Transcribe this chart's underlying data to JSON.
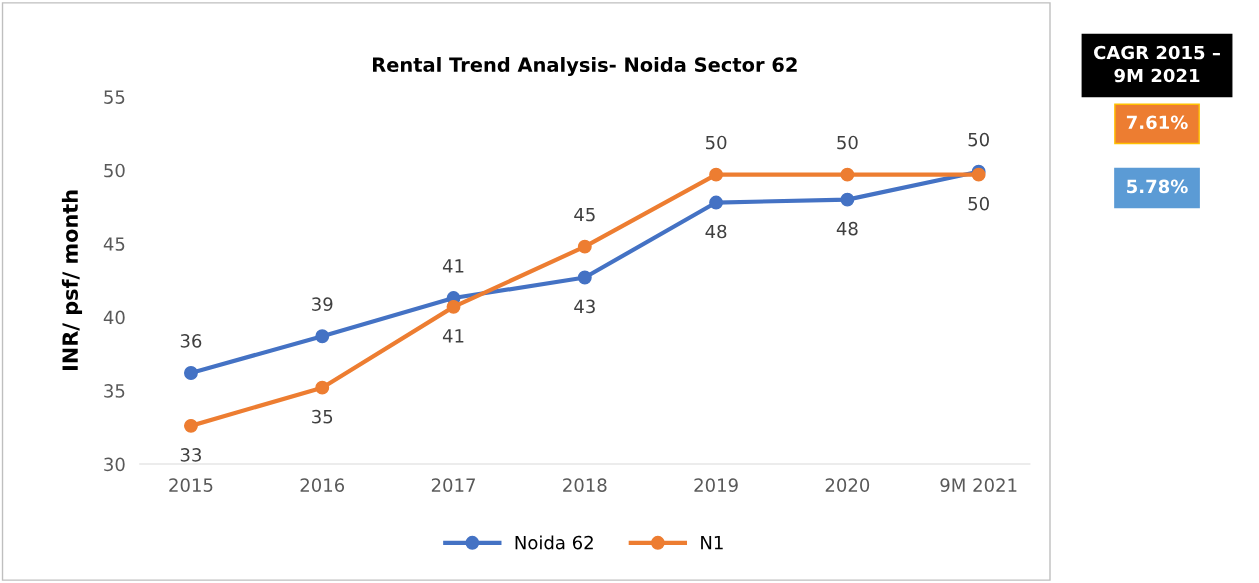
{
  "chart_data": {
    "type": "line",
    "title": "Rental Trend Analysis- Noida Sector 62",
    "ylabel": "INR/ psf/ month",
    "categories": [
      "2015",
      "2016",
      "2017",
      "2018",
      "2019",
      "2020",
      "9M 2021"
    ],
    "series": [
      {
        "name": "Noida 62",
        "color": "#4472c4",
        "values": [
          36.2,
          38.7,
          41.3,
          42.7,
          47.8,
          48.0,
          49.9
        ],
        "value_labels": [
          "36",
          "39",
          "41",
          "43",
          "48",
          "48",
          "50"
        ]
      },
      {
        "name": "N1",
        "color": "#ed7d31",
        "values": [
          32.6,
          35.2,
          40.7,
          44.8,
          49.7,
          49.7,
          49.7
        ],
        "value_labels": [
          "33",
          "35",
          "41",
          "45",
          "50",
          "50",
          "50"
        ]
      }
    ],
    "ylim": [
      30,
      55
    ],
    "yticks": [
      30,
      35,
      40,
      45,
      50,
      55
    ],
    "grid": false,
    "legend": "bottom",
    "marker": "circle",
    "line_style": "solid",
    "annotations": [
      "CAGR 2015 – 9M 2021",
      "7.61%",
      "5.78%"
    ]
  }
}
